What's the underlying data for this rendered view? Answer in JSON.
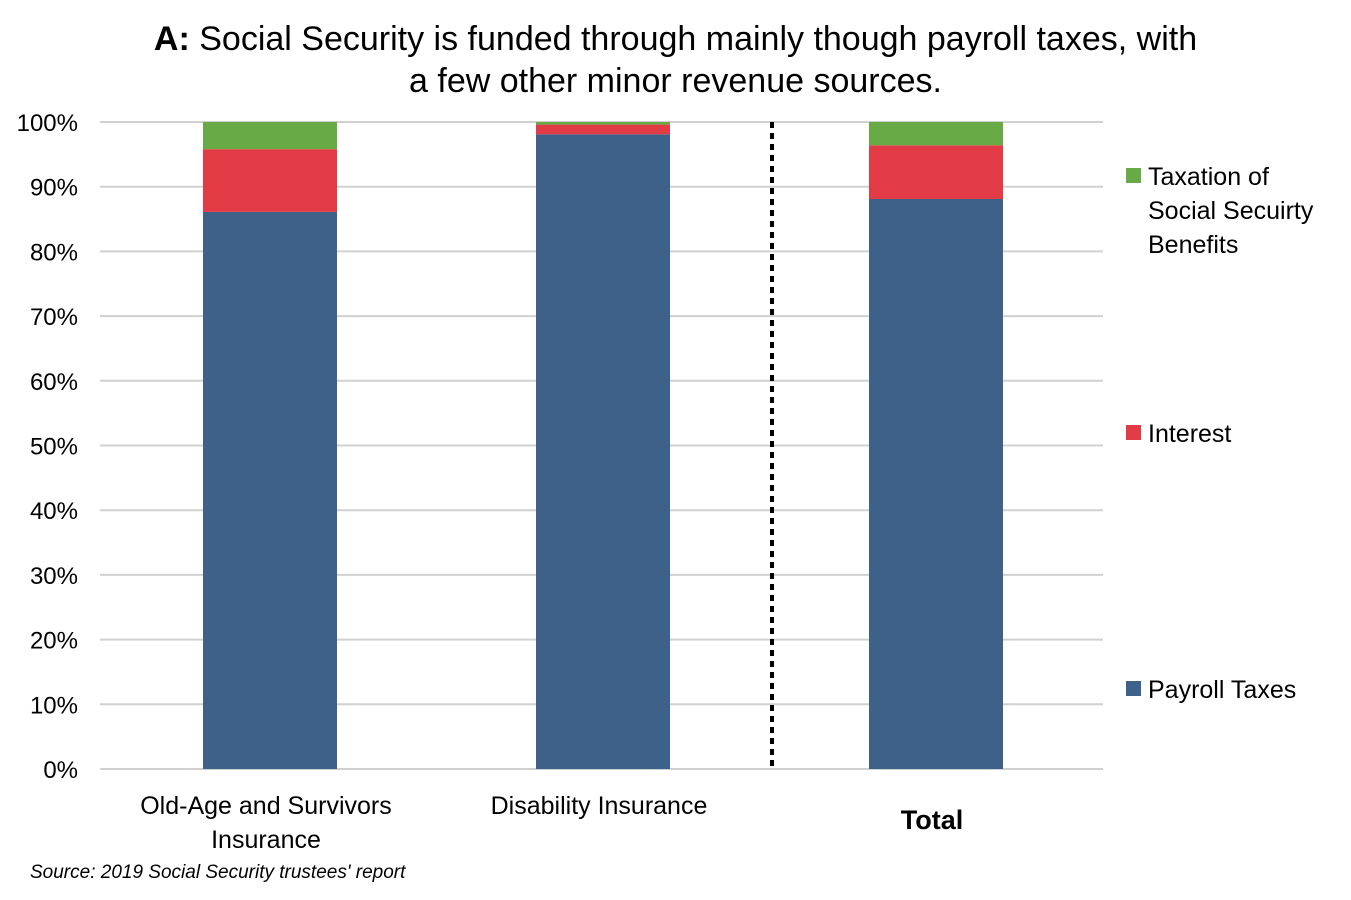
{
  "chart_data": {
    "type": "bar",
    "stacked": true,
    "title_prefix": "A:",
    "title_line1": "Social Security is funded through mainly though payroll taxes, with",
    "title_line2": "a few other minor revenue sources.",
    "categories": [
      "Old-Age and Survivors Insurance",
      "Disability Insurance",
      "Total"
    ],
    "category_lines": [
      [
        "Old-Age and Survivors",
        "Insurance"
      ],
      [
        "Disability Insurance"
      ],
      [
        "Total"
      ]
    ],
    "series": [
      {
        "name": "Payroll Taxes",
        "color": "#3e6189",
        "values": [
          86.1,
          98.1,
          88.1
        ]
      },
      {
        "name": "Interest",
        "color": "#e23b46",
        "values": [
          9.7,
          1.5,
          8.3
        ]
      },
      {
        "name": "Taxation of Social Secuirty Benefits",
        "legend_lines": [
          "Taxation of",
          "Social Secuirty",
          "Benefits"
        ],
        "color": "#68ab46",
        "values": [
          4.2,
          0.4,
          3.6
        ]
      }
    ],
    "ylim": [
      0,
      100
    ],
    "yticks": [
      "0%",
      "10%",
      "20%",
      "30%",
      "40%",
      "50%",
      "60%",
      "70%",
      "80%",
      "90%",
      "100%"
    ],
    "grid": true,
    "legend_position": "right",
    "separator": "dotted line between Disability Insurance and Total",
    "source": "Source: 2019 Social Security trustees' report"
  }
}
